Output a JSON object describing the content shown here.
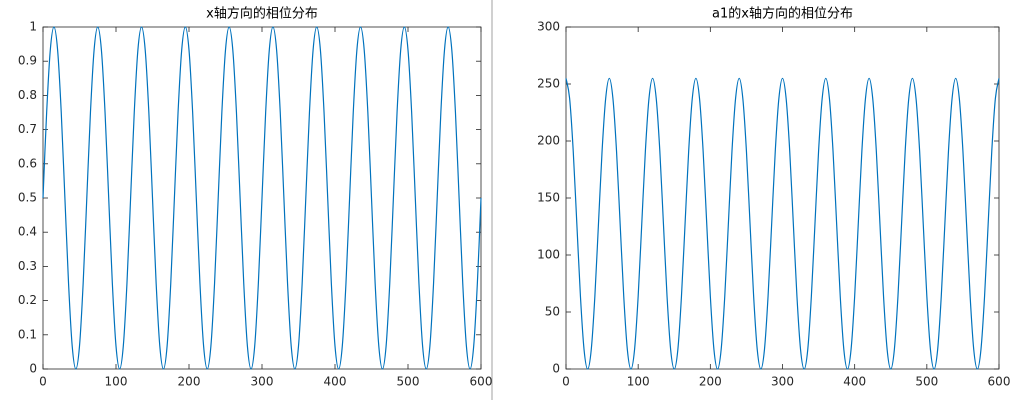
{
  "chart_data": [
    {
      "type": "line",
      "title": "x轴方向的相位分布",
      "x": [
        0,
        5,
        10,
        15,
        20,
        25,
        30,
        35,
        40,
        45,
        50,
        55,
        60,
        65,
        70,
        75,
        80,
        85,
        90,
        95,
        100,
        105,
        110,
        115,
        120,
        125,
        130,
        135,
        140,
        145,
        150,
        155,
        160,
        165,
        170,
        175,
        180,
        185,
        190,
        195,
        200,
        205,
        210,
        215,
        220,
        225,
        230,
        235,
        240,
        245,
        250,
        255,
        260,
        265,
        270,
        275,
        280,
        285,
        290,
        295,
        300,
        305,
        310,
        315,
        320,
        325,
        330,
        335,
        340,
        345,
        350,
        355,
        360,
        365,
        370,
        375,
        380,
        385,
        390,
        395,
        400,
        405,
        410,
        415,
        420,
        425,
        430,
        435,
        440,
        445,
        450,
        455,
        460,
        465,
        470,
        475,
        480,
        485,
        490,
        495,
        500,
        505,
        510,
        515,
        520,
        525,
        530,
        535,
        540,
        545,
        550,
        555,
        560,
        565,
        570,
        575,
        580,
        585,
        590,
        595,
        600
      ],
      "series": [
        {
          "color": "#0072bd",
          "values": [
            0.5,
            0.75,
            0.933,
            1,
            0.933,
            0.75,
            0.5,
            0.25,
            0.067,
            0,
            0.067,
            0.25,
            0.5,
            0.75,
            0.933,
            1,
            0.933,
            0.75,
            0.5,
            0.25,
            0.067,
            0,
            0.067,
            0.25,
            0.5,
            0.75,
            0.933,
            1,
            0.933,
            0.75,
            0.5,
            0.25,
            0.067,
            0,
            0.067,
            0.25,
            0.5,
            0.75,
            0.933,
            1,
            0.933,
            0.75,
            0.5,
            0.25,
            0.067,
            0,
            0.067,
            0.25,
            0.5,
            0.75,
            0.933,
            1,
            0.933,
            0.75,
            0.5,
            0.25,
            0.067,
            0,
            0.067,
            0.25,
            0.5,
            0.75,
            0.933,
            1,
            0.933,
            0.75,
            0.5,
            0.25,
            0.067,
            0,
            0.067,
            0.25,
            0.5,
            0.75,
            0.933,
            1,
            0.933,
            0.75,
            0.5,
            0.25,
            0.067,
            0,
            0.067,
            0.25,
            0.5,
            0.75,
            0.933,
            1,
            0.933,
            0.75,
            0.5,
            0.25,
            0.067,
            0,
            0.067,
            0.25,
            0.5,
            0.75,
            0.933,
            1,
            0.933,
            0.75,
            0.5,
            0.25,
            0.067,
            0,
            0.067,
            0.25,
            0.5,
            0.75,
            0.933,
            1,
            0.933,
            0.75,
            0.5,
            0.25,
            0.067,
            0,
            0.067,
            0.25,
            0.5
          ]
        }
      ],
      "xlim": [
        0,
        600
      ],
      "ylim": [
        0,
        1
      ],
      "xticks": [
        0,
        100,
        200,
        300,
        400,
        500,
        600
      ],
      "yticks": [
        0,
        0.1,
        0.2,
        0.3,
        0.4,
        0.5,
        0.6,
        0.7,
        0.8,
        0.9,
        1
      ]
    },
    {
      "type": "line",
      "title": "a1的x轴方向的相位分布",
      "x": [
        0,
        5,
        10,
        15,
        20,
        25,
        30,
        35,
        40,
        45,
        50,
        55,
        60,
        65,
        70,
        75,
        80,
        85,
        90,
        95,
        100,
        105,
        110,
        115,
        120,
        125,
        130,
        135,
        140,
        145,
        150,
        155,
        160,
        165,
        170,
        175,
        180,
        185,
        190,
        195,
        200,
        205,
        210,
        215,
        220,
        225,
        230,
        235,
        240,
        245,
        250,
        255,
        260,
        265,
        270,
        275,
        280,
        285,
        290,
        295,
        300,
        305,
        310,
        315,
        320,
        325,
        330,
        335,
        340,
        345,
        350,
        355,
        360,
        365,
        370,
        375,
        380,
        385,
        390,
        395,
        400,
        405,
        410,
        415,
        420,
        425,
        430,
        435,
        440,
        445,
        450,
        455,
        460,
        465,
        470,
        475,
        480,
        485,
        490,
        495,
        500,
        505,
        510,
        515,
        520,
        525,
        530,
        535,
        540,
        545,
        550,
        555,
        560,
        565,
        570,
        575,
        580,
        585,
        590,
        595,
        600
      ],
      "series": [
        {
          "color": "#0072bd",
          "values": [
            255,
            237.4,
            191.3,
            127.5,
            63.8,
            17.1,
            0,
            17.1,
            63.8,
            127.5,
            191.3,
            237.4,
            255,
            237.4,
            191.3,
            127.5,
            63.8,
            17.1,
            0,
            17.1,
            63.8,
            127.5,
            191.3,
            237.4,
            255,
            237.4,
            191.3,
            127.5,
            63.8,
            17.1,
            0,
            17.1,
            63.8,
            127.5,
            191.3,
            237.4,
            255,
            237.4,
            191.3,
            127.5,
            63.8,
            17.1,
            0,
            17.1,
            63.8,
            127.5,
            191.3,
            237.4,
            255,
            237.4,
            191.3,
            127.5,
            63.8,
            17.1,
            0,
            17.1,
            63.8,
            127.5,
            191.3,
            237.4,
            255,
            237.4,
            191.3,
            127.5,
            63.8,
            17.1,
            0,
            17.1,
            63.8,
            127.5,
            191.3,
            237.4,
            255,
            237.4,
            191.3,
            127.5,
            63.8,
            17.1,
            0,
            17.1,
            63.8,
            127.5,
            191.3,
            237.4,
            255,
            237.4,
            191.3,
            127.5,
            63.8,
            17.1,
            0,
            17.1,
            63.8,
            127.5,
            191.3,
            237.4,
            255,
            237.4,
            191.3,
            127.5,
            63.8,
            17.1,
            0,
            17.1,
            63.8,
            127.5,
            191.3,
            237.4,
            255,
            237.4,
            191.3,
            127.5,
            63.8,
            17.1,
            0,
            17.1,
            63.8,
            127.5,
            191.3,
            237.4,
            255
          ]
        }
      ],
      "xlim": [
        0,
        600
      ],
      "ylim": [
        0,
        300
      ],
      "xticks": [
        0,
        100,
        200,
        300,
        400,
        500,
        600
      ],
      "yticks": [
        0,
        50,
        100,
        150,
        200,
        250,
        300
      ]
    }
  ]
}
